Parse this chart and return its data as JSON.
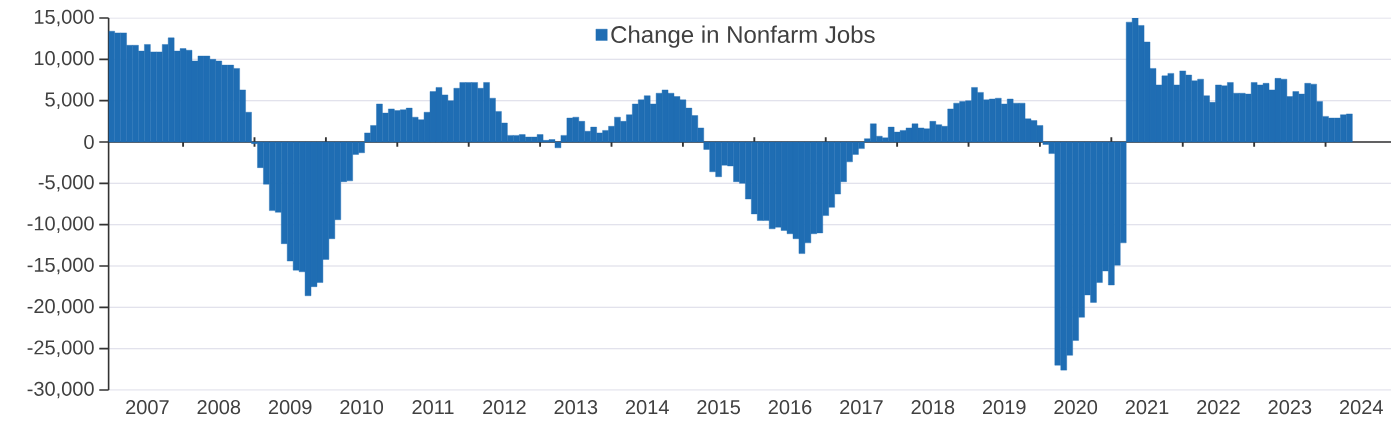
{
  "chart_data": {
    "type": "bar",
    "x": [
      "2007-01",
      "2007-02",
      "2007-03",
      "2007-04",
      "2007-05",
      "2007-06",
      "2007-07",
      "2007-08",
      "2007-09",
      "2007-10",
      "2007-11",
      "2007-12",
      "2008-01",
      "2008-02",
      "2008-03",
      "2008-04",
      "2008-05",
      "2008-06",
      "2008-07",
      "2008-08",
      "2008-09",
      "2008-10",
      "2008-11",
      "2008-12",
      "2009-01",
      "2009-02",
      "2009-03",
      "2009-04",
      "2009-05",
      "2009-06",
      "2009-07",
      "2009-08",
      "2009-09",
      "2009-10",
      "2009-11",
      "2009-12",
      "2010-01",
      "2010-02",
      "2010-03",
      "2010-04",
      "2010-05",
      "2010-06",
      "2010-07",
      "2010-08",
      "2010-09",
      "2010-10",
      "2010-11",
      "2010-12",
      "2011-01",
      "2011-02",
      "2011-03",
      "2011-04",
      "2011-05",
      "2011-06",
      "2011-07",
      "2011-08",
      "2011-09",
      "2011-10",
      "2011-11",
      "2011-12",
      "2012-01",
      "2012-02",
      "2012-03",
      "2012-04",
      "2012-05",
      "2012-06",
      "2012-07",
      "2012-08",
      "2012-09",
      "2012-10",
      "2012-11",
      "2012-12",
      "2013-01",
      "2013-02",
      "2013-03",
      "2013-04",
      "2013-05",
      "2013-06",
      "2013-07",
      "2013-08",
      "2013-09",
      "2013-10",
      "2013-11",
      "2013-12",
      "2014-01",
      "2014-02",
      "2014-03",
      "2014-04",
      "2014-05",
      "2014-06",
      "2014-07",
      "2014-08",
      "2014-09",
      "2014-10",
      "2014-11",
      "2014-12",
      "2015-01",
      "2015-02",
      "2015-03",
      "2015-04",
      "2015-05",
      "2015-06",
      "2015-07",
      "2015-08",
      "2015-09",
      "2015-10",
      "2015-11",
      "2015-12",
      "2016-01",
      "2016-02",
      "2016-03",
      "2016-04",
      "2016-05",
      "2016-06",
      "2016-07",
      "2016-08",
      "2016-09",
      "2016-10",
      "2016-11",
      "2016-12",
      "2017-01",
      "2017-02",
      "2017-03",
      "2017-04",
      "2017-05",
      "2017-06",
      "2017-07",
      "2017-08",
      "2017-09",
      "2017-10",
      "2017-11",
      "2017-12",
      "2018-01",
      "2018-02",
      "2018-03",
      "2018-04",
      "2018-05",
      "2018-06",
      "2018-07",
      "2018-08",
      "2018-09",
      "2018-10",
      "2018-11",
      "2018-12",
      "2019-01",
      "2019-02",
      "2019-03",
      "2019-04",
      "2019-05",
      "2019-06",
      "2019-07",
      "2019-08",
      "2019-09",
      "2019-10",
      "2019-11",
      "2019-12",
      "2020-01",
      "2020-02",
      "2020-03",
      "2020-04",
      "2020-05",
      "2020-06",
      "2020-07",
      "2020-08",
      "2020-09",
      "2020-10",
      "2020-11",
      "2020-12",
      "2021-01",
      "2021-02",
      "2021-03",
      "2021-04",
      "2021-05",
      "2021-06",
      "2021-07",
      "2021-08",
      "2021-09",
      "2021-10",
      "2021-11",
      "2021-12",
      "2022-01",
      "2022-02",
      "2022-03",
      "2022-04",
      "2022-05",
      "2022-06",
      "2022-07",
      "2022-08",
      "2022-09",
      "2022-10",
      "2022-11",
      "2022-12",
      "2023-01",
      "2023-02",
      "2023-03",
      "2023-04",
      "2023-05",
      "2023-06",
      "2023-07",
      "2023-08",
      "2023-09",
      "2023-10",
      "2023-11",
      "2023-12",
      "2024-01",
      "2024-02",
      "2024-03",
      "2024-04",
      "2024-05"
    ],
    "series": [
      {
        "name": "Change in Nonfarm Jobs",
        "color": "#1f6db3",
        "values": [
          13400,
          13200,
          13200,
          11700,
          11700,
          11000,
          11800,
          10900,
          10900,
          11800,
          12600,
          11000,
          11300,
          11100,
          9800,
          10400,
          10400,
          10000,
          9800,
          9300,
          9300,
          8900,
          6300,
          3600,
          -200,
          -3100,
          -5100,
          -8300,
          -8500,
          -12300,
          -14400,
          -15500,
          -15700,
          -18600,
          -17500,
          -17000,
          -14200,
          -11700,
          -9400,
          -4800,
          -4700,
          -1500,
          -1300,
          1100,
          2000,
          4600,
          3500,
          4000,
          3800,
          3900,
          4100,
          3000,
          2700,
          3600,
          6100,
          6600,
          5700,
          5000,
          6500,
          7200,
          7200,
          7200,
          6500,
          7200,
          5300,
          3700,
          2300,
          800,
          800,
          900,
          600,
          600,
          900,
          200,
          300,
          -700,
          800,
          2900,
          3000,
          2500,
          1300,
          1800,
          1100,
          1400,
          1900,
          3000,
          2500,
          3300,
          4600,
          5100,
          5600,
          4600,
          5900,
          6300,
          5900,
          5500,
          5100,
          4100,
          3200,
          1700,
          -900,
          -3600,
          -4200,
          -2800,
          -2900,
          -4800,
          -5000,
          -6900,
          -8700,
          -9500,
          -9500,
          -10500,
          -10300,
          -10700,
          -11100,
          -11700,
          -13500,
          -12200,
          -11100,
          -11000,
          -8900,
          -7900,
          -6300,
          -4800,
          -2400,
          -1500,
          -800,
          400,
          2200,
          700,
          500,
          1800,
          1200,
          1400,
          1700,
          2200,
          1700,
          1600,
          2500,
          2100,
          1900,
          4000,
          4700,
          4900,
          5000,
          6600,
          6000,
          5100,
          5200,
          5300,
          4600,
          5200,
          4700,
          4700,
          2800,
          2600,
          2000,
          -300,
          -1400,
          -27000,
          -27600,
          -25800,
          -24000,
          -21200,
          -18500,
          -19400,
          -17000,
          -15600,
          -17300,
          -14900,
          -12200,
          14500,
          15000,
          14100,
          12100,
          8900,
          6900,
          8000,
          8300,
          6900,
          8600,
          8100,
          7400,
          7600,
          5600,
          4800,
          6900,
          6800,
          7200,
          5900,
          5900,
          5800,
          7200,
          6900,
          7100,
          6300,
          7700,
          7600,
          5500,
          6100,
          5800,
          7100,
          7000,
          4900,
          3100,
          2900,
          2900,
          3300,
          3400
        ]
      }
    ],
    "xlim": [
      "2006-12-16",
      "2024-12"
    ],
    "xticks": [
      {
        "value": "2007-07",
        "label": "2007"
      },
      {
        "value": "2008-07",
        "label": "2008"
      },
      {
        "value": "2009-07",
        "label": "2009"
      },
      {
        "value": "2010-07",
        "label": "2010"
      },
      {
        "value": "2011-07",
        "label": "2011"
      },
      {
        "value": "2012-07",
        "label": "2012"
      },
      {
        "value": "2013-07",
        "label": "2013"
      },
      {
        "value": "2014-07",
        "label": "2014"
      },
      {
        "value": "2015-07",
        "label": "2015"
      },
      {
        "value": "2016-07",
        "label": "2016"
      },
      {
        "value": "2017-07",
        "label": "2017"
      },
      {
        "value": "2018-07",
        "label": "2018"
      },
      {
        "value": "2019-07",
        "label": "2019"
      },
      {
        "value": "2020-07",
        "label": "2020"
      },
      {
        "value": "2021-07",
        "label": "2021"
      },
      {
        "value": "2022-07",
        "label": "2022"
      },
      {
        "value": "2023-07",
        "label": "2023"
      },
      {
        "value": "2024-07",
        "label": "2024"
      },
      {
        "value": "2008-01",
        "label": null
      },
      {
        "value": "2009-01",
        "label": null
      },
      {
        "value": "2010-01",
        "label": null
      },
      {
        "value": "2011-01",
        "label": null
      },
      {
        "value": "2012-01",
        "label": null
      },
      {
        "value": "2013-01",
        "label": null
      },
      {
        "value": "2014-01",
        "label": null
      },
      {
        "value": "2015-01",
        "label": null
      },
      {
        "value": "2016-01",
        "label": null
      },
      {
        "value": "2017-01",
        "label": null
      },
      {
        "value": "2018-01",
        "label": null
      },
      {
        "value": "2019-01",
        "label": null
      },
      {
        "value": "2020-01",
        "label": null
      },
      {
        "value": "2021-01",
        "label": null
      },
      {
        "value": "2022-01",
        "label": null
      },
      {
        "value": "2023-01",
        "label": null
      },
      {
        "value": "2024-01",
        "label": null
      }
    ],
    "ylim": [
      -30000,
      15000
    ],
    "yticks": [
      {
        "value": -30000,
        "label": "-30,000"
      },
      {
        "value": -25000,
        "label": "-25,000"
      },
      {
        "value": -20000,
        "label": "-20,000"
      },
      {
        "value": -15000,
        "label": "-15,000"
      },
      {
        "value": -10000,
        "label": "-10,000"
      },
      {
        "value": -5000,
        "label": "-5,000"
      },
      {
        "value": 0,
        "label": "0"
      },
      {
        "value": 5000,
        "label": "5,000"
      },
      {
        "value": 10000,
        "label": "10,000"
      },
      {
        "value": 15000,
        "label": "15,000"
      }
    ],
    "grid": "y",
    "legend": "top"
  }
}
